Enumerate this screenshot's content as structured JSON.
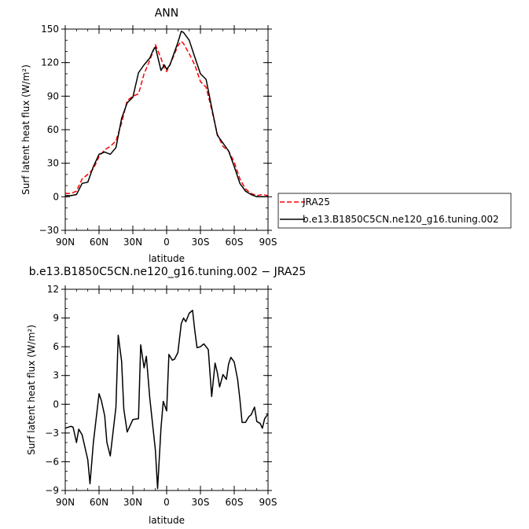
{
  "chart_data": [
    {
      "type": "line",
      "title": "ANN",
      "xlabel": "latitude",
      "ylabel": "Surf latent heat flux (W/m²)",
      "xlim": [
        90,
        -90
      ],
      "ylim": [
        -30,
        150
      ],
      "xticks": [
        90,
        60,
        30,
        0,
        -30,
        -60,
        -90
      ],
      "xtick_labels": [
        "90N",
        "60N",
        "30N",
        "0",
        "30S",
        "60S",
        "90S"
      ],
      "yticks": [
        -30,
        0,
        30,
        60,
        90,
        120,
        150
      ],
      "ytick_labels": [
        "−30",
        "0",
        "30",
        "60",
        "90",
        "120",
        "150"
      ],
      "legend_position": "right",
      "series": [
        {
          "name": "JRA25",
          "color": "#ff0000",
          "dash": "dashed",
          "x": [
            90,
            85,
            80,
            75,
            70,
            65,
            60,
            55,
            50,
            45,
            40,
            35,
            30,
            25,
            20,
            15,
            12,
            10,
            5,
            2,
            0,
            -5,
            -10,
            -13,
            -15,
            -20,
            -25,
            -30,
            -35,
            -40,
            -45,
            -50,
            -55,
            -60,
            -65,
            -70,
            -75,
            -80,
            -85,
            -90
          ],
          "y": [
            3,
            3,
            5,
            16,
            20,
            25,
            36,
            42,
            45,
            50,
            66,
            86,
            90,
            92,
            110,
            122,
            130,
            136,
            124,
            115,
            112,
            123,
            135,
            139,
            137,
            128,
            118,
            103,
            98,
            78,
            56,
            45,
            41,
            31,
            16,
            7,
            3,
            1,
            2,
            1
          ]
        },
        {
          "name": "b.e13.B1850C5CN.ne120_g16.tuning.002",
          "color": "#000000",
          "dash": "solid",
          "x": [
            90,
            85,
            80,
            75,
            70,
            65,
            60,
            55,
            50,
            45,
            40,
            35,
            30,
            25,
            20,
            15,
            12,
            10,
            5,
            2,
            0,
            -3,
            -5,
            -10,
            -13,
            -15,
            -20,
            -25,
            -30,
            -35,
            -40,
            -45,
            -50,
            -55,
            -60,
            -65,
            -70,
            -75,
            -80,
            -85,
            -90
          ],
          "y": [
            1,
            1,
            2,
            12,
            13,
            27,
            38,
            40,
            38,
            44,
            70,
            84,
            89,
            111,
            118,
            124,
            131,
            134,
            113,
            118,
            114,
            118,
            124,
            138,
            148,
            147,
            140,
            125,
            110,
            105,
            80,
            55,
            48,
            41,
            27,
            12,
            5,
            2,
            0,
            0,
            0
          ]
        }
      ]
    },
    {
      "type": "line",
      "title": "b.e13.B1850C5CN.ne120_g16.tuning.002 − JRA25",
      "xlabel": "latitude",
      "ylabel": "Surf latent heat flux (W/m²)",
      "xlim": [
        90,
        -90
      ],
      "ylim": [
        -9,
        12
      ],
      "xticks": [
        90,
        60,
        30,
        0,
        -30,
        -60,
        -90
      ],
      "xtick_labels": [
        "90N",
        "60N",
        "30N",
        "0",
        "30S",
        "60S",
        "90S"
      ],
      "yticks": [
        -9,
        -6,
        -3,
        0,
        3,
        6,
        9,
        12
      ],
      "ytick_labels": [
        "−9",
        "−6",
        "−3",
        "0",
        "3",
        "6",
        "9",
        "12"
      ],
      "series": [
        {
          "color": "#000000",
          "dash": "solid",
          "x": [
            90,
            85,
            83,
            80,
            78,
            75,
            70,
            68,
            65,
            60,
            58,
            55,
            53,
            50,
            45,
            43,
            40,
            38,
            35,
            30,
            25,
            23,
            20,
            18,
            15,
            10,
            8,
            5,
            3,
            0,
            -2,
            -5,
            -7,
            -10,
            -13,
            -15,
            -17,
            -20,
            -23,
            -25,
            -27,
            -30,
            -33,
            -35,
            -37,
            -40,
            -43,
            -45,
            -47,
            -50,
            -53,
            -55,
            -57,
            -60,
            -63,
            -65,
            -67,
            -70,
            -73,
            -75,
            -78,
            -80,
            -83,
            -85,
            -87,
            -90
          ],
          "y": [
            -2.5,
            -2.3,
            -2.4,
            -4.0,
            -2.6,
            -3.2,
            -5.8,
            -8.3,
            -4.0,
            1.1,
            0.4,
            -1.2,
            -4.0,
            -5.4,
            -0.3,
            7.2,
            4.5,
            -0.5,
            -2.9,
            -1.6,
            -1.5,
            6.2,
            3.8,
            5.0,
            0.7,
            -4.8,
            -8.8,
            -2.5,
            0.3,
            -0.7,
            5.2,
            4.6,
            4.7,
            5.4,
            8.4,
            9.0,
            8.6,
            9.5,
            9.8,
            7.7,
            5.9,
            6.0,
            6.3,
            6.0,
            5.7,
            0.8,
            4.3,
            3.3,
            1.8,
            3.1,
            2.6,
            4.2,
            4.9,
            4.4,
            2.6,
            0.5,
            -1.9,
            -1.9,
            -1.3,
            -1.1,
            -0.3,
            -1.8,
            -2.0,
            -2.5,
            -1.5,
            -1.0
          ]
        }
      ]
    }
  ]
}
